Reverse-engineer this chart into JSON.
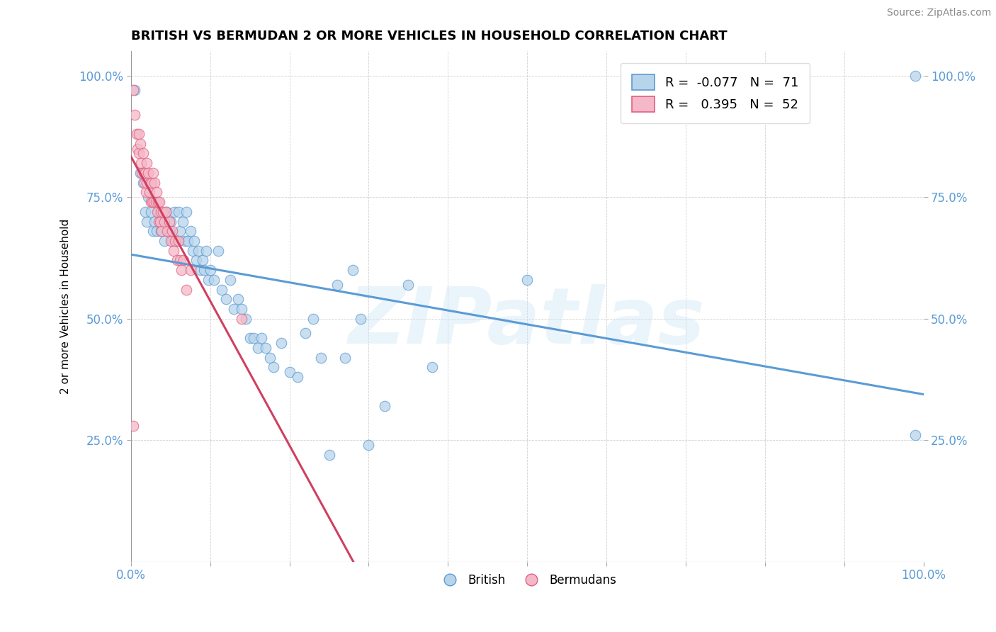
{
  "title": "BRITISH VS BERMUDAN 2 OR MORE VEHICLES IN HOUSEHOLD CORRELATION CHART",
  "source": "Source: ZipAtlas.com",
  "ylabel": "2 or more Vehicles in Household",
  "xmin": 0.0,
  "xmax": 1.0,
  "ymin": 0.0,
  "ymax": 1.05,
  "ytick_positions": [
    0.25,
    0.5,
    0.75,
    1.0
  ],
  "ytick_labels": [
    "25.0%",
    "50.0%",
    "75.0%",
    "100.0%"
  ],
  "xtick_positions": [
    0.0,
    0.1,
    0.2,
    0.3,
    0.4,
    0.5,
    0.6,
    0.7,
    0.8,
    0.9,
    1.0
  ],
  "watermark_text": "ZIPatlas",
  "legend_blue_r": "-0.077",
  "legend_blue_n": "71",
  "legend_pink_r": "0.395",
  "legend_pink_n": "52",
  "blue_face": "#b8d4ea",
  "blue_edge": "#5b9bd5",
  "pink_face": "#f5b8c8",
  "pink_edge": "#e06080",
  "trendline_blue": "#5b9bd5",
  "trendline_pink": "#d04060",
  "british_x": [
    0.005,
    0.012,
    0.015,
    0.018,
    0.02,
    0.022,
    0.025,
    0.028,
    0.03,
    0.032,
    0.035,
    0.038,
    0.04,
    0.042,
    0.045,
    0.048,
    0.05,
    0.052,
    0.055,
    0.058,
    0.06,
    0.062,
    0.065,
    0.068,
    0.07,
    0.072,
    0.075,
    0.078,
    0.08,
    0.082,
    0.085,
    0.088,
    0.09,
    0.092,
    0.095,
    0.098,
    0.1,
    0.105,
    0.11,
    0.115,
    0.12,
    0.125,
    0.13,
    0.135,
    0.14,
    0.145,
    0.15,
    0.155,
    0.16,
    0.165,
    0.17,
    0.175,
    0.18,
    0.19,
    0.2,
    0.21,
    0.22,
    0.23,
    0.24,
    0.25,
    0.26,
    0.27,
    0.28,
    0.29,
    0.3,
    0.32,
    0.35,
    0.38,
    0.5,
    0.99,
    0.99
  ],
  "british_y": [
    0.97,
    0.8,
    0.78,
    0.72,
    0.7,
    0.75,
    0.72,
    0.68,
    0.7,
    0.68,
    0.72,
    0.68,
    0.7,
    0.66,
    0.72,
    0.68,
    0.7,
    0.66,
    0.72,
    0.66,
    0.72,
    0.68,
    0.7,
    0.66,
    0.72,
    0.66,
    0.68,
    0.64,
    0.66,
    0.62,
    0.64,
    0.6,
    0.62,
    0.6,
    0.64,
    0.58,
    0.6,
    0.58,
    0.64,
    0.56,
    0.54,
    0.58,
    0.52,
    0.54,
    0.52,
    0.5,
    0.46,
    0.46,
    0.44,
    0.46,
    0.44,
    0.42,
    0.4,
    0.45,
    0.39,
    0.38,
    0.47,
    0.5,
    0.42,
    0.22,
    0.57,
    0.42,
    0.6,
    0.5,
    0.24,
    0.32,
    0.57,
    0.4,
    0.58,
    1.0,
    0.26
  ],
  "bermudan_x": [
    0.003,
    0.005,
    0.007,
    0.008,
    0.01,
    0.01,
    0.012,
    0.013,
    0.014,
    0.015,
    0.016,
    0.017,
    0.018,
    0.019,
    0.02,
    0.02,
    0.022,
    0.023,
    0.024,
    0.025,
    0.026,
    0.027,
    0.028,
    0.029,
    0.03,
    0.031,
    0.032,
    0.033,
    0.034,
    0.035,
    0.036,
    0.037,
    0.038,
    0.039,
    0.04,
    0.042,
    0.044,
    0.046,
    0.048,
    0.05,
    0.052,
    0.054,
    0.056,
    0.058,
    0.06,
    0.062,
    0.064,
    0.066,
    0.07,
    0.075,
    0.003,
    0.14
  ],
  "bermudan_y": [
    0.97,
    0.92,
    0.88,
    0.85,
    0.88,
    0.84,
    0.86,
    0.82,
    0.8,
    0.84,
    0.8,
    0.78,
    0.8,
    0.76,
    0.82,
    0.78,
    0.8,
    0.76,
    0.78,
    0.74,
    0.78,
    0.74,
    0.8,
    0.74,
    0.78,
    0.74,
    0.76,
    0.72,
    0.74,
    0.7,
    0.74,
    0.7,
    0.72,
    0.68,
    0.72,
    0.7,
    0.72,
    0.68,
    0.7,
    0.66,
    0.68,
    0.64,
    0.66,
    0.62,
    0.66,
    0.62,
    0.6,
    0.62,
    0.56,
    0.6,
    0.28,
    0.5
  ]
}
